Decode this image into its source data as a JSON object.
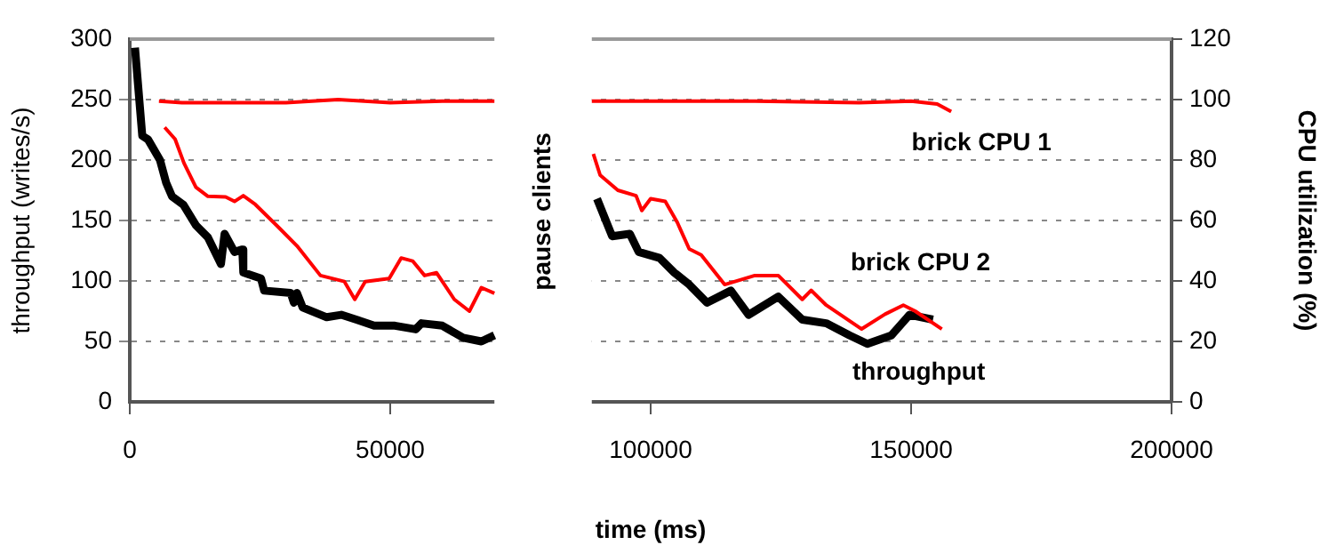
{
  "chart_data": {
    "type": "line",
    "xlabel": "time (ms)",
    "ylabel": "throughput (writes/s)",
    "y2label": "CPU utilization (%)",
    "xlim": [
      0,
      200000
    ],
    "xticks": [
      0,
      50000,
      100000,
      150000,
      200000
    ],
    "ylim": [
      0,
      300
    ],
    "yticks": [
      0,
      50,
      100,
      150,
      200,
      250,
      300
    ],
    "y2lim": [
      0,
      120
    ],
    "y2ticks": [
      0,
      20,
      40,
      60,
      80,
      100,
      120
    ],
    "grid": "y",
    "marker": "none",
    "line_style": "solid",
    "bands": [
      {
        "axis": "x",
        "from": 70000,
        "to": 88700,
        "label": "pause clients",
        "color": "#ffffff"
      }
    ],
    "series": [
      {
        "name": "brick CPU 1",
        "color": "#ff0000",
        "axis": "y2",
        "x": [
          5600,
          10000,
          20000,
          30000,
          40000,
          50000,
          60000,
          70000,
          80000,
          88700,
          100000,
          120000,
          140000,
          150000,
          155000,
          157700
        ],
        "values": [
          99.5,
          99,
          99,
          99,
          100,
          99,
          99.5,
          99.5,
          null,
          99.5,
          99.5,
          99.5,
          99,
          99.5,
          98.5,
          96
        ]
      },
      {
        "name": "brick CPU 2",
        "color": "#ff0000",
        "axis": "y2",
        "x": [
          6700,
          8700,
          10400,
          12700,
          15000,
          18400,
          20100,
          21800,
          24100,
          28700,
          32100,
          36600,
          41200,
          43200,
          45200,
          49800,
          52100,
          54300,
          56600,
          58900,
          62300,
          65200,
          67500,
          70000,
          80000,
          89000,
          90300,
          93700,
          97200,
          98300,
          100000,
          102800,
          105100,
          107400,
          109700,
          114200,
          120000,
          124500,
          129100,
          130800,
          133700,
          140500,
          145000,
          148500,
          150800,
          155900
        ],
        "values": [
          90.8,
          86.9,
          79,
          71,
          68,
          67.8,
          66.3,
          68.2,
          65.3,
          57.5,
          51.6,
          41.8,
          39.8,
          33.9,
          39.8,
          40.8,
          47.6,
          46.6,
          41.8,
          42.7,
          33.9,
          30,
          37.8,
          35.9,
          null,
          82,
          75,
          70,
          68.2,
          63.3,
          67.2,
          66.3,
          59.4,
          50.6,
          48.6,
          38.8,
          41.8,
          41.8,
          33.9,
          36.9,
          32,
          24.1,
          29,
          32,
          30,
          24.1
        ]
      },
      {
        "name": "throughput",
        "color": "#000000",
        "axis": "y",
        "x": [
          1000,
          2400,
          3500,
          5800,
          7000,
          8100,
          10300,
          12700,
          15000,
          17500,
          18200,
          20100,
          21600,
          21800,
          25200,
          25800,
          30900,
          31500,
          32100,
          33200,
          37800,
          40600,
          43500,
          46900,
          50900,
          54900,
          56000,
          60000,
          64000,
          67500,
          70000,
          80000,
          89700,
          92600,
          96000,
          97700,
          101700,
          104500,
          107400,
          110800,
          115400,
          118800,
          124500,
          129100,
          133700,
          138200,
          141600,
          146200,
          149700,
          154200
        ],
        "values": [
          293,
          220,
          217,
          200,
          181,
          170,
          163,
          146,
          136,
          114,
          139,
          124,
          126,
          107,
          102,
          92,
          90,
          82,
          90,
          78,
          70,
          72,
          68,
          63,
          63,
          60,
          65,
          63,
          53,
          50,
          55,
          null,
          168,
          137,
          139,
          124,
          119,
          107,
          97,
          82,
          92,
          72,
          87,
          68,
          65,
          55,
          48,
          55,
          72,
          68
        ]
      }
    ]
  }
}
